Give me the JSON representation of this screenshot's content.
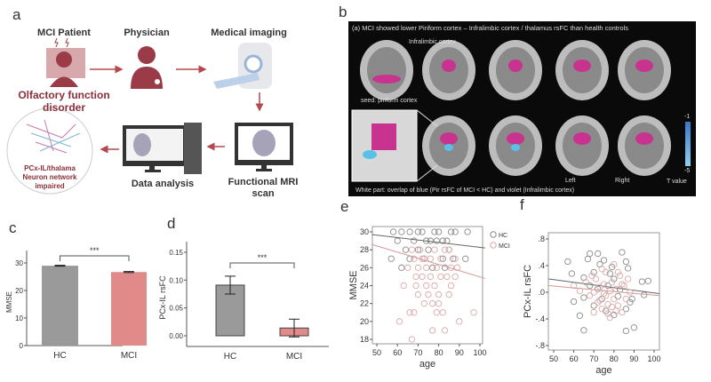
{
  "panel_labels": {
    "a": "a",
    "b": "b",
    "c": "c",
    "d": "d",
    "e": "e",
    "f": "f"
  },
  "workflow": {
    "patient_title": "MCI Patient",
    "patient_caption_1": "Olfactory function",
    "patient_caption_2": "disorder",
    "physician_title": "Physician",
    "imaging_title": "Medical imaging",
    "fmri_caption_1": "Functional MRI",
    "fmri_caption_2": "scan",
    "analysis_caption": "Data analysis",
    "network_caption_1": "PCx-IL/thalama",
    "network_caption_2": "Neuron network",
    "network_caption_3": "impaired",
    "accent": "#a33a45"
  },
  "brain_panel": {
    "title": "(a) MCI showed lower Piriform cortex – Infralimbic cortex / thalamus rsFC than health controls",
    "label_infralimbic": "Infralimbic cortex",
    "label_seed": "seed: piriform cortex",
    "label_left": "Left",
    "label_right": "Right",
    "caption": "White part: overlap of blue (Pir rsFC of MCI < HC) and violet (Infralimbic cortex)",
    "colorbar_max": "-1",
    "colorbar_min": "-5",
    "colorbar_title": "T value",
    "highlight_color": "#c8338f",
    "overlap_color": "#5bc0e8"
  },
  "chart_data": [
    {
      "id": "c",
      "type": "bar",
      "categories": [
        "HC",
        "MCI"
      ],
      "values": [
        29.0,
        26.7
      ],
      "errors": [
        0.15,
        0.2
      ],
      "ylabel": "MMSE",
      "ylim": [
        0,
        35
      ],
      "yticks": [
        "0",
        "10",
        "20",
        "30"
      ],
      "significance": "***",
      "colors": [
        "#9a9a9a",
        "#e08a8a"
      ]
    },
    {
      "id": "d",
      "type": "bar",
      "categories": [
        "HC",
        "MCI"
      ],
      "values": [
        0.091,
        0.014
      ],
      "errors": [
        0.016,
        0.016
      ],
      "ylabel": "PCx-IL rsFC",
      "ylim": [
        -0.01,
        0.16
      ],
      "yticks": [
        "0.00",
        "0.05",
        "0.10",
        "0.15"
      ],
      "significance": "***",
      "colors": [
        "#9a9a9a",
        "#e08a8a"
      ]
    },
    {
      "id": "e",
      "type": "scatter",
      "xlabel": "age",
      "ylabel": "MMSE",
      "xlim": [
        47.5,
        102.5
      ],
      "ylim": [
        17.5,
        30.5
      ],
      "xticks": [
        "50",
        "60",
        "70",
        "80",
        "90",
        "100"
      ],
      "yticks": [
        "18",
        "20",
        "22",
        "24",
        "26",
        "28",
        "30"
      ],
      "legend": "top-right",
      "series": [
        {
          "name": "HC",
          "color": "#8a8a8a",
          "fit": [
            [
              47.5,
              29.7
            ],
            [
              102.5,
              28.2
            ]
          ],
          "points": [
            [
              58,
              30
            ],
            [
              62,
              30
            ],
            [
              66,
              30
            ],
            [
              70,
              30
            ],
            [
              74,
              29
            ],
            [
              78,
              30
            ],
            [
              82,
              29
            ],
            [
              86,
              30
            ],
            [
              94,
              30
            ],
            [
              60,
              29
            ],
            [
              68,
              29
            ],
            [
              72,
              30
            ],
            [
              76,
              29
            ],
            [
              80,
              30
            ],
            [
              84,
              29
            ],
            [
              88,
              30
            ],
            [
              57,
              27
            ],
            [
              66,
              27
            ],
            [
              70,
              28
            ],
            [
              75,
              28
            ],
            [
              79,
              29
            ],
            [
              85,
              28
            ],
            [
              93,
              27
            ],
            [
              64,
              28
            ],
            [
              73,
              27
            ],
            [
              82,
              27
            ],
            [
              87,
              27
            ],
            [
              62,
              26
            ],
            [
              77,
              26
            ],
            [
              83,
              26
            ]
          ]
        },
        {
          "name": "MCI",
          "color": "#dba8a8",
          "fit": [
            [
              47.5,
              28.6
            ],
            [
              102.5,
              24.8
            ]
          ],
          "points": [
            [
              61,
              20
            ],
            [
              67,
              18
            ],
            [
              66,
              21
            ],
            [
              68,
              21
            ],
            [
              77,
              19
            ],
            [
              83,
              19
            ],
            [
              90,
              20
            ],
            [
              97,
              21
            ],
            [
              63,
              24
            ],
            [
              69,
              24
            ],
            [
              74,
              24
            ],
            [
              78,
              24
            ],
            [
              86,
              24
            ],
            [
              70,
              23
            ],
            [
              75,
              23
            ],
            [
              80,
              23
            ],
            [
              85,
              23
            ],
            [
              73,
              22
            ],
            [
              77,
              22
            ],
            [
              80,
              22
            ],
            [
              69,
              25
            ],
            [
              72,
              25
            ],
            [
              76,
              25
            ],
            [
              81,
              25
            ],
            [
              84,
              25
            ],
            [
              88,
              25
            ],
            [
              65,
              26
            ],
            [
              70,
              26
            ],
            [
              74,
              26
            ],
            [
              79,
              26
            ],
            [
              86,
              26
            ],
            [
              89,
              26
            ],
            [
              68,
              27
            ],
            [
              72,
              27
            ],
            [
              76,
              27
            ],
            [
              81,
              27
            ],
            [
              88,
              27
            ],
            [
              67,
              28
            ],
            [
              71,
              28
            ],
            [
              78,
              28
            ],
            [
              83,
              28
            ],
            [
              85,
              28
            ],
            [
              79,
              21
            ],
            [
              82,
              21
            ],
            [
              73,
              27
            ]
          ]
        }
      ]
    },
    {
      "id": "f",
      "type": "scatter",
      "xlabel": "age",
      "ylabel": "PCx-IL rsFC",
      "xlim": [
        47.5,
        102.5
      ],
      "ylim": [
        -0.9,
        0.9
      ],
      "xticks": [
        "50",
        "60",
        "70",
        "80",
        "90",
        "100"
      ],
      "yticks": [
        "-.8",
        "-.4",
        ".0",
        ".4",
        ".8"
      ],
      "series": [
        {
          "name": "HC",
          "color": "#8a8a8a",
          "fit": [
            [
              47.5,
              0.2
            ],
            [
              102.5,
              -0.02
            ]
          ],
          "points": [
            [
              57,
              0.46
            ],
            [
              59,
              0.28
            ],
            [
              60,
              -0.14
            ],
            [
              63,
              -0.35
            ],
            [
              65,
              0.22
            ],
            [
              67,
              0.5
            ],
            [
              68,
              0.58
            ],
            [
              70,
              0.3
            ],
            [
              72,
              0.58
            ],
            [
              73,
              0.42
            ],
            [
              75,
              0.48
            ],
            [
              77,
              0.1
            ],
            [
              78,
              0.28
            ],
            [
              80,
              0.2
            ],
            [
              82,
              -0.06
            ],
            [
              84,
              0.6
            ],
            [
              86,
              0.46
            ],
            [
              87,
              0.36
            ],
            [
              88,
              -0.15
            ],
            [
              89,
              -0.1
            ],
            [
              65,
              -0.08
            ],
            [
              70,
              -0.2
            ],
            [
              74,
              -0.1
            ],
            [
              76,
              -0.28
            ],
            [
              80,
              -0.34
            ],
            [
              83,
              0.04
            ],
            [
              86,
              -0.25
            ],
            [
              90,
              -0.53
            ],
            [
              86,
              -0.58
            ],
            [
              65,
              -0.57
            ],
            [
              94,
              0.16
            ],
            [
              97,
              0.17
            ],
            [
              95,
              -0.04
            ],
            [
              68,
              0.1
            ],
            [
              72,
              0.05
            ],
            [
              79,
              0.38
            ]
          ]
        },
        {
          "name": "MCI",
          "color": "#dba8a8",
          "fit": [
            [
              47.5,
              0.1
            ],
            [
              102.5,
              -0.05
            ]
          ],
          "points": [
            [
              60,
              0.1
            ],
            [
              63,
              0.02
            ],
            [
              66,
              0.15
            ],
            [
              68,
              -0.05
            ],
            [
              70,
              0.0
            ],
            [
              71,
              0.2
            ],
            [
              72,
              -0.15
            ],
            [
              73,
              0.08
            ],
            [
              74,
              -0.25
            ],
            [
              75,
              0.12
            ],
            [
              76,
              -0.05
            ],
            [
              77,
              -0.32
            ],
            [
              78,
              0.02
            ],
            [
              78,
              -0.38
            ],
            [
              79,
              0.15
            ],
            [
              80,
              -0.1
            ],
            [
              81,
              0.05
            ],
            [
              82,
              -0.2
            ],
            [
              83,
              0.25
            ],
            [
              84,
              -0.3
            ],
            [
              85,
              0.1
            ],
            [
              86,
              -0.1
            ],
            [
              87,
              0.2
            ],
            [
              88,
              0.0
            ],
            [
              76,
              0.3
            ],
            [
              74,
              0.35
            ],
            [
              70,
              -0.3
            ],
            [
              80,
              0.42
            ],
            [
              82,
              0.3
            ],
            [
              69,
              0.25
            ],
            [
              77,
              -0.18
            ],
            [
              79,
              -0.22
            ],
            [
              75,
              -0.02
            ],
            [
              73,
              -0.12
            ],
            [
              81,
              -0.28
            ],
            [
              84,
              0.12
            ]
          ]
        }
      ]
    }
  ]
}
